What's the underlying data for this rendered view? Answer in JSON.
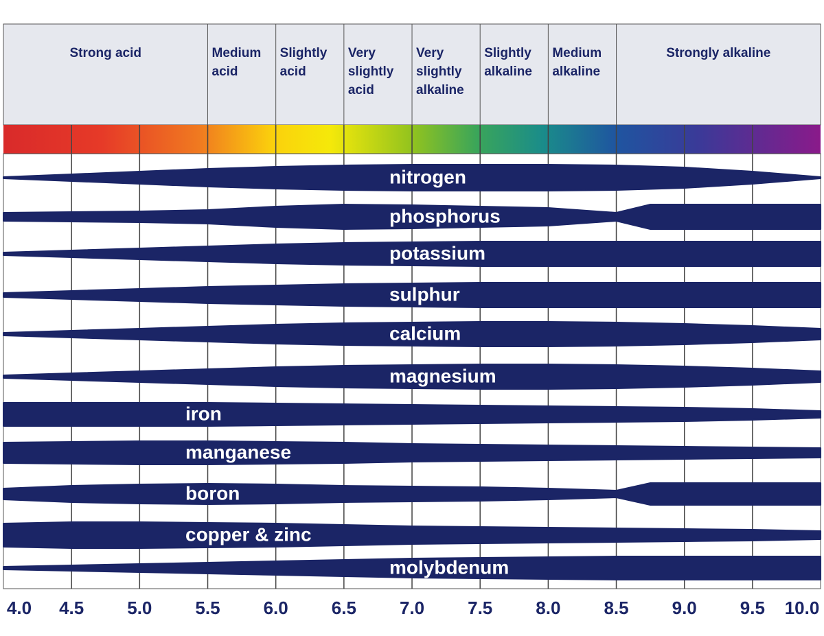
{
  "zones": [
    "Strong acid",
    "Medium acid",
    "Slightly acid",
    "Very slightly acid",
    "Very slightly alkaline",
    "Slightly alkaline",
    "Medium alkaline",
    "Strongly alkaline"
  ],
  "nutrients": [
    "nitrogen",
    "phosphorus",
    "potassium",
    "sulphur",
    "calcium",
    "magnesium",
    "iron",
    "manganese",
    "boron",
    "copper & zinc",
    "molybdenum"
  ],
  "ph_labels": [
    "4.0",
    "4.5",
    "5.0",
    "5.5",
    "6.0",
    "6.5",
    "7.0",
    "7.5",
    "8.0",
    "8.5",
    "9.0",
    "9.5",
    "10.0"
  ]
}
